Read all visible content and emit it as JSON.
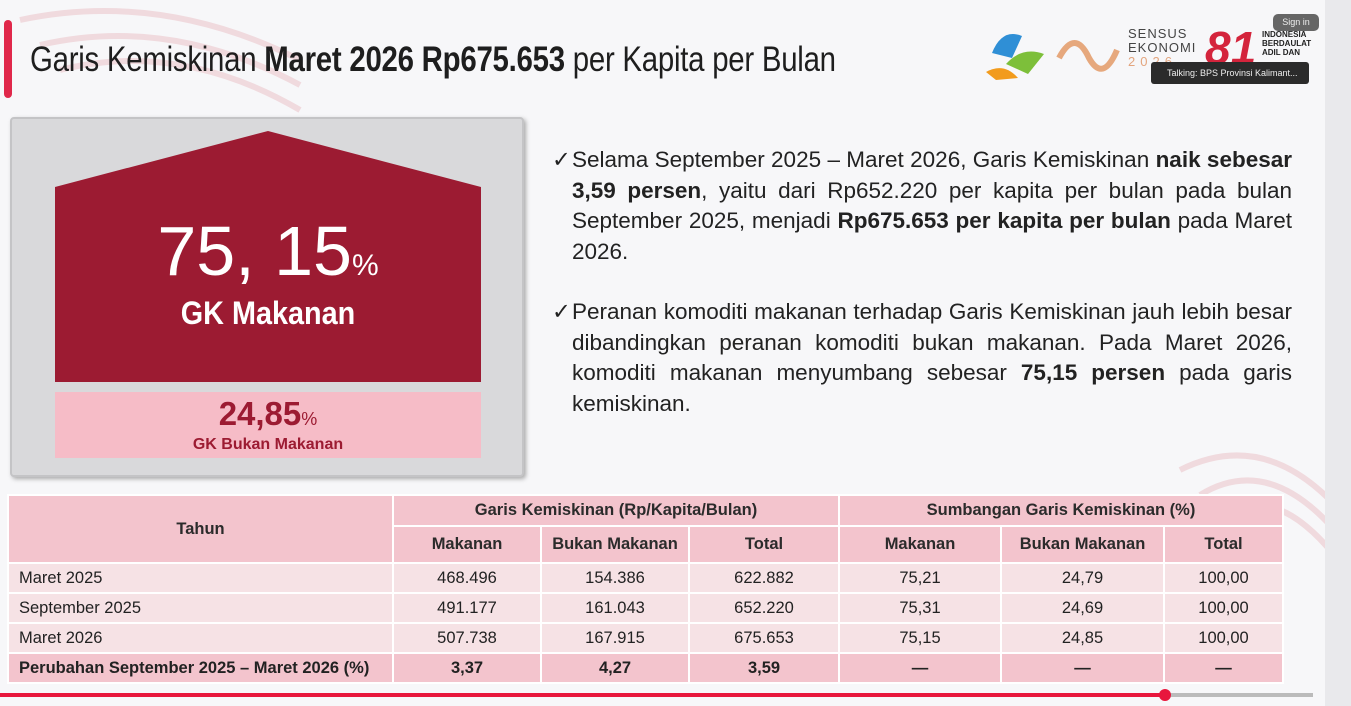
{
  "header": {
    "title": [
      {
        "text": "Garis Kemiskinan ",
        "bold": false
      },
      {
        "text": "Maret 2026 Rp675.653",
        "bold": true
      },
      {
        "text": " per Kapita per Bulan",
        "bold": false
      }
    ]
  },
  "logos": {
    "sensus": [
      "SENSUS",
      "EKONOMI",
      "2026"
    ],
    "anniversary": {
      "number": "81",
      "lines": [
        "INDONESIA",
        "BERDAULAT",
        "ADIL DAN"
      ]
    }
  },
  "meeting": {
    "sign_in": "Sign in",
    "talking": "Talking: BPS Provinsi Kalimant..."
  },
  "card": {
    "main_value": "75, 15",
    "main_unit": "%",
    "main_label": "GK Makanan",
    "sub_value": "24,85",
    "sub_unit": "%",
    "sub_label": "GK Bukan Makanan"
  },
  "bullets": {
    "marker": "✓",
    "items": [
      [
        {
          "text": "Selama September 2025 – Maret 2026, Garis Kemiskinan ",
          "bold": false
        },
        {
          "text": "naik sebesar 3,59 persen",
          "bold": true
        },
        {
          "text": ", yaitu dari Rp652.220 per kapita per bulan pada bulan September 2025, menjadi ",
          "bold": false
        },
        {
          "text": "Rp675.653 per kapita per bulan",
          "bold": true
        },
        {
          "text": " pada Maret 2026.",
          "bold": false
        }
      ],
      [
        {
          "text": "Peranan komoditi makanan terhadap Garis Kemiskinan jauh lebih besar dibandingkan peranan komoditi bukan makanan. Pada Maret 2026, komoditi makanan menyumbang sebesar ",
          "bold": false
        },
        {
          "text": "75,15 persen",
          "bold": true
        },
        {
          "text": " pada garis kemiskinan.",
          "bold": false
        }
      ]
    ]
  },
  "table": {
    "header": {
      "year": "Tahun",
      "group_1": "Garis Kemiskinan (Rp/Kapita/Bulan)",
      "group_2": "Sumbangan Garis Kemiskinan (%)",
      "columns": [
        "Makanan",
        "Bukan Makanan",
        "Total",
        "Makanan",
        "Bukan Makanan",
        "Total"
      ]
    },
    "rows": [
      [
        "Maret 2025",
        "468.496",
        "154.386",
        "622.882",
        "75,21",
        "24,79",
        "100,00"
      ],
      [
        "September 2025",
        "491.177",
        "161.043",
        "652.220",
        "75,31",
        "24,69",
        "100,00"
      ],
      [
        "Maret 2026",
        "507.738",
        "167.915",
        "675.653",
        "75,15",
        "24,85",
        "100,00"
      ],
      [
        "Perubahan September 2025 –  Maret 2026 (%)",
        "3,37",
        "4,27",
        "3,59",
        "—",
        "—",
        "—"
      ]
    ]
  }
}
